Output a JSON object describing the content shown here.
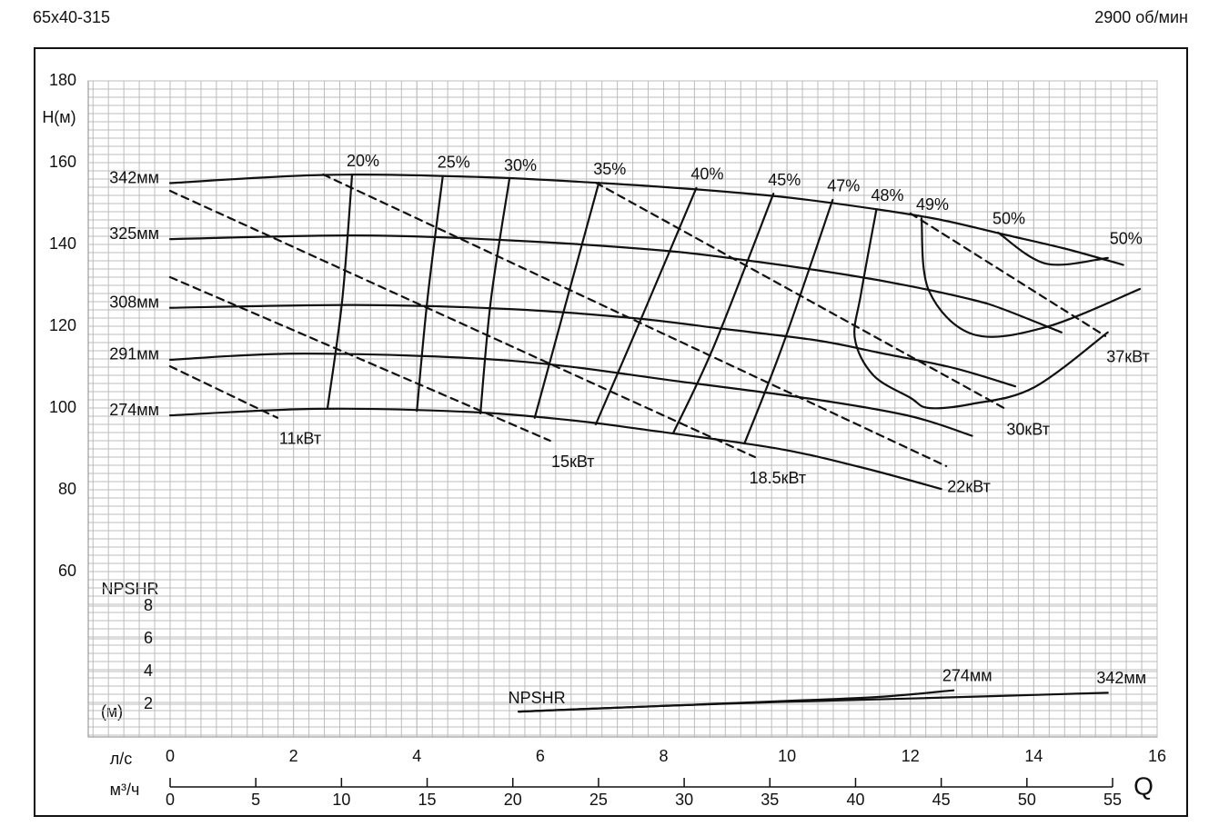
{
  "header": {
    "model": "65x40-315",
    "speed": "2900 об/мин"
  },
  "chart_data": {
    "type": "line",
    "ylabel": "H(м)",
    "y2label": "NPSHR",
    "y2unit": "(м)",
    "xlabel": "л/с",
    "x2label": "м³/ч",
    "qlabel": "Q",
    "xlim": [
      0,
      16
    ],
    "xticks": [
      0,
      2,
      4,
      6,
      8,
      10,
      12,
      14,
      16
    ],
    "x2lim": [
      0,
      57.6
    ],
    "x2ticks": [
      0,
      5,
      10,
      15,
      20,
      25,
      30,
      35,
      40,
      45,
      50,
      55
    ],
    "ylim": [
      60,
      180
    ],
    "yticks": [
      60,
      80,
      100,
      120,
      140,
      160,
      180
    ],
    "y2lim": [
      0,
      8
    ],
    "y2ticks": [
      2,
      4,
      6,
      8
    ],
    "grid": true,
    "color": "#111111",
    "series": [
      {
        "name": "342мм",
        "x": [
          0,
          2.5,
          5,
          7,
          8.5,
          10,
          11.5,
          12.5,
          13.5,
          14.5,
          15.45
        ],
        "values": [
          155,
          157,
          156.5,
          155,
          153.5,
          151.5,
          148.5,
          146,
          142.5,
          139,
          135
        ]
      },
      {
        "name": "325мм",
        "x": [
          0,
          3,
          5.5,
          8,
          9.5,
          11,
          12,
          13,
          13.5,
          14.45
        ],
        "values": [
          141.3,
          142.2,
          141,
          138.5,
          135.8,
          132.5,
          129.8,
          126.5,
          124.2,
          118.5
        ]
      },
      {
        "name": "308мм",
        "x": [
          0,
          3,
          5.5,
          7.5,
          9,
          10.5,
          11.5,
          12.7,
          13.7
        ],
        "values": [
          124.5,
          125.2,
          124.2,
          122,
          119.3,
          116.5,
          113.5,
          109.8,
          105.3
        ]
      },
      {
        "name": "291мм",
        "x": [
          0,
          2.2,
          5.5,
          8.3,
          10.5,
          12,
          13
        ],
        "values": [
          111.8,
          113.3,
          111.6,
          106.4,
          102,
          98,
          93.2
        ]
      },
      {
        "name": "274мм",
        "x": [
          0,
          2.4,
          4.9,
          6.5,
          7.6,
          9.8,
          11.2,
          12.5
        ],
        "values": [
          98.2,
          99.8,
          99,
          97,
          94.9,
          90.2,
          85.5,
          80.2
        ]
      }
    ],
    "efficiency": [
      {
        "labels": [
          "20%"
        ],
        "x": [
          2.95,
          2.79,
          2.55
        ],
        "values": [
          157.1,
          126.4,
          99.8
        ]
      },
      {
        "labels": [
          "25%"
        ],
        "x": [
          4.42,
          4.17,
          4.0
        ],
        "values": [
          156.7,
          126.4,
          99.3
        ]
      },
      {
        "labels": [
          "30%"
        ],
        "x": [
          5.5,
          5.2,
          5.03
        ],
        "values": [
          156,
          126.4,
          98.7
        ]
      },
      {
        "labels": [
          "35%"
        ],
        "x": [
          6.95,
          6.39,
          5.91
        ],
        "values": [
          155.1,
          124.2,
          97.6
        ]
      },
      {
        "labels": [
          "40%"
        ],
        "x": [
          8.53,
          7.64,
          6.9
        ],
        "values": [
          153.8,
          122,
          96
        ]
      },
      {
        "labels": [
          "45%"
        ],
        "x": [
          9.78,
          8.82,
          8.16
        ],
        "values": [
          152.4,
          115.3,
          94
        ]
      },
      {
        "labels": [
          "47%"
        ],
        "x": [
          10.74,
          9.93,
          9.31
        ],
        "values": [
          150.9,
          115.3,
          91.3
        ]
      },
      {
        "labels": [
          "48%"
        ],
        "x": [
          11.45,
          11.2,
          11.1,
          11.4,
          12,
          12.3,
          13,
          14,
          15.2
        ],
        "values": [
          148.6,
          128,
          117,
          108,
          102.5,
          100,
          101,
          105,
          118.5
        ]
      },
      {
        "labels": [
          "49%"
        ],
        "x": [
          12.18,
          12.3,
          13.02,
          14.2,
          15.72
        ],
        "values": [
          146.4,
          128.7,
          118,
          119.8,
          129.1
        ]
      },
      {
        "labels": [
          "50%",
          "50%"
        ],
        "x": [
          13.42,
          14.2,
          15.2
        ],
        "values": [
          142.9,
          135.3,
          136.7
        ]
      }
    ],
    "power": [
      {
        "name": "11кВт",
        "x": [
          0,
          1.74
        ],
        "values": [
          110.2,
          97.6
        ]
      },
      {
        "name": "15кВт",
        "x": [
          0,
          6.16
        ],
        "values": [
          132,
          92
        ]
      },
      {
        "name": "18.5кВт",
        "x": [
          0,
          9.48
        ],
        "values": [
          153.1,
          88
        ]
      },
      {
        "name": "22кВт",
        "x": [
          2.48,
          12.58
        ],
        "values": [
          157.1,
          85.8
        ]
      },
      {
        "name": "30кВт",
        "x": [
          6.9,
          13.54
        ],
        "values": [
          155.1,
          99.8
        ]
      },
      {
        "name": "37кВт",
        "x": [
          12,
          15.16
        ],
        "values": [
          147.6,
          117.6
        ]
      }
    ],
    "npshr": {
      "label": "NPSHR",
      "series": [
        {
          "name": "274мм",
          "axis": "y2",
          "x": [
            5.65,
            8,
            10,
            11.5,
            12.7
          ],
          "values": [
            1.55,
            1.9,
            2.2,
            2.45,
            2.85
          ]
        },
        {
          "name": "342мм",
          "axis": "y2",
          "x": [
            5.65,
            8,
            10,
            12,
            15.2
          ],
          "values": [
            1.55,
            1.9,
            2.15,
            2.35,
            2.7
          ]
        }
      ]
    }
  }
}
